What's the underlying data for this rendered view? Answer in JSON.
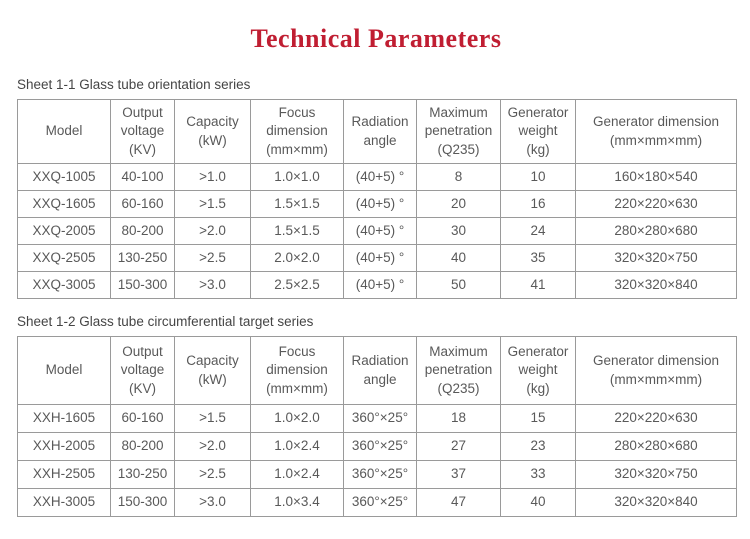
{
  "theme": {
    "accent-red": "#c01e32",
    "text-gray": "#595959",
    "label-gray": "#454545",
    "border-gray": "#9a9a9a",
    "page-bg": "#ffffff"
  },
  "page": {
    "title": "Technical Parameters"
  },
  "tables": [
    {
      "caption": "Sheet 1-1 Glass tube orientation series",
      "header_lines": [
        [
          "Model"
        ],
        [
          "Output",
          "voltage",
          "(KV)"
        ],
        [
          "Capacity",
          "(kW)"
        ],
        [
          "Focus",
          "dimension",
          "(mm×mm)"
        ],
        [
          "Radiation",
          "angle"
        ],
        [
          "Maximum",
          "penetration",
          "(Q235)"
        ],
        [
          "Generator",
          "weight",
          "(kg)"
        ],
        [
          "Generator dimension",
          "(mm×mm×mm)"
        ]
      ],
      "rows": [
        [
          "XXQ-1005",
          "40-100",
          ">1.0",
          "1.0×1.0",
          "(40+5) °",
          "8",
          "10",
          "160×180×540"
        ],
        [
          "XXQ-1605",
          "60-160",
          ">1.5",
          "1.5×1.5",
          "(40+5) °",
          "20",
          "16",
          "220×220×630"
        ],
        [
          "XXQ-2005",
          "80-200",
          ">2.0",
          "1.5×1.5",
          "(40+5) °",
          "30",
          "24",
          "280×280×680"
        ],
        [
          "XXQ-2505",
          "130-250",
          ">2.5",
          "2.0×2.0",
          "(40+5) °",
          "40",
          "35",
          "320×320×750"
        ],
        [
          "XXQ-3005",
          "150-300",
          ">3.0",
          "2.5×2.5",
          "(40+5) °",
          "50",
          "41",
          "320×320×840"
        ]
      ]
    },
    {
      "caption": "Sheet 1-2 Glass tube circumferential target series",
      "header_lines": [
        [
          "Model"
        ],
        [
          "Output",
          "voltage",
          "(KV)"
        ],
        [
          "Capacity",
          "(kW)"
        ],
        [
          "Focus",
          "dimension",
          "(mm×mm)"
        ],
        [
          "Radiation",
          "angle"
        ],
        [
          "Maximum",
          "penetration",
          "(Q235)"
        ],
        [
          "Generator",
          "weight",
          "(kg)"
        ],
        [
          "Generator dimension",
          "(mm×mm×mm)"
        ]
      ],
      "rows": [
        [
          "XXH-1605",
          "60-160",
          ">1.5",
          "1.0×2.0",
          "360°×25°",
          "18",
          "15",
          "220×220×630"
        ],
        [
          "XXH-2005",
          "80-200",
          ">2.0",
          "1.0×2.4",
          "360°×25°",
          "27",
          "23",
          "280×280×680"
        ],
        [
          "XXH-2505",
          "130-250",
          ">2.5",
          "1.0×2.4",
          "360°×25°",
          "37",
          "33",
          "320×320×750"
        ],
        [
          "XXH-3005",
          "150-300",
          ">3.0",
          "1.0×3.4",
          "360°×25°",
          "47",
          "40",
          "320×320×840"
        ]
      ]
    }
  ]
}
